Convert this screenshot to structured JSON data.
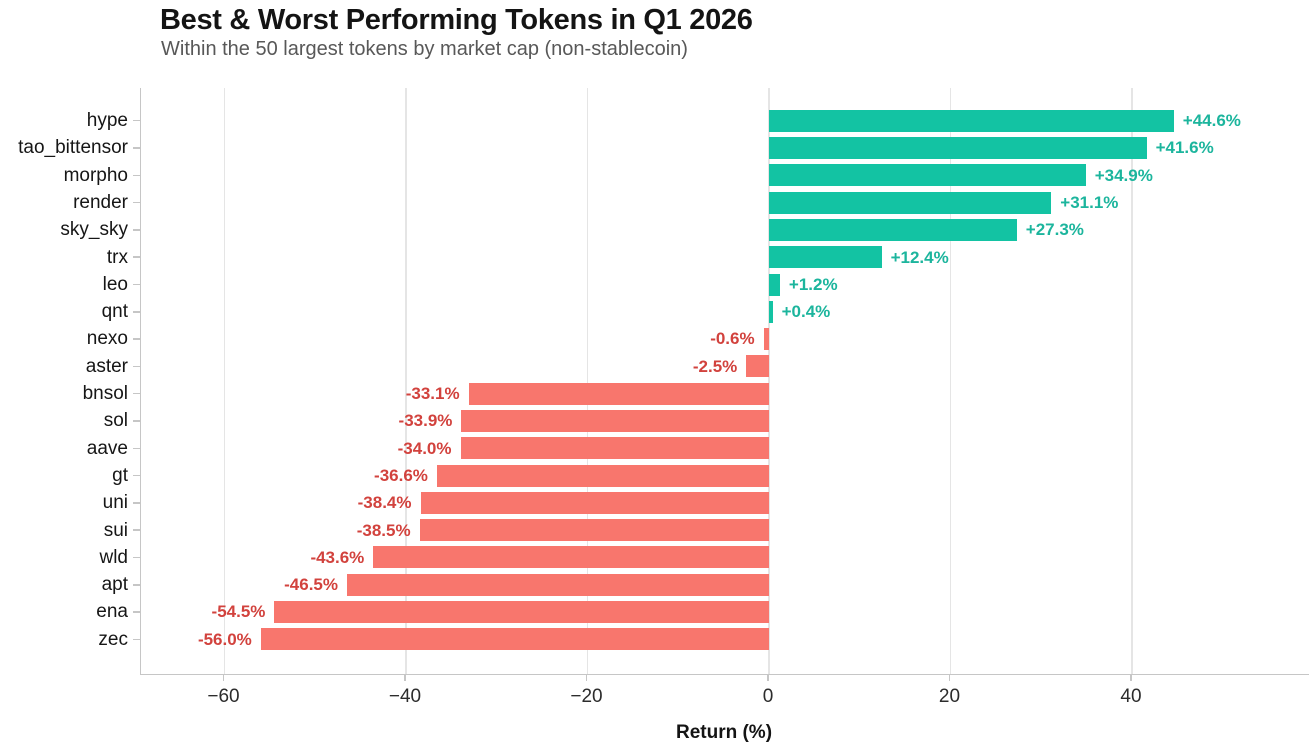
{
  "header": {
    "title": "Best & Worst Performing Tokens in Q1 2026",
    "subtitle": "Within the 50 largest tokens by market cap (non-stablecoin)"
  },
  "colors": {
    "positive_bar": "#13c3a3",
    "negative_bar": "#f8766d",
    "positive_label": "#1cb59d",
    "negative_label": "#d2423d",
    "gridline": "#e5e5e5",
    "axis_spine": "#c6c6c6",
    "title_text": "#141414",
    "subtitle_text": "#585858"
  },
  "chart_data": {
    "type": "bar",
    "orientation": "horizontal",
    "title": "Best & Worst Performing Tokens in Q1 2026",
    "subtitle": "Within the 50 largest tokens by market cap (non-stablecoin)",
    "xlabel": "Return (%)",
    "ylabel": "",
    "categories": [
      "hype",
      "tao_bittensor",
      "morpho",
      "render",
      "sky_sky",
      "trx",
      "leo",
      "qnt",
      "nexo",
      "aster",
      "bnsol",
      "sol",
      "aave",
      "gt",
      "uni",
      "sui",
      "wld",
      "apt",
      "ena",
      "zec"
    ],
    "values": [
      44.6,
      41.6,
      34.9,
      31.1,
      27.3,
      12.4,
      1.2,
      0.4,
      -0.6,
      -2.5,
      -33.1,
      -33.9,
      -34.0,
      -36.6,
      -38.4,
      -38.5,
      -43.6,
      -46.5,
      -54.5,
      -56.0
    ],
    "value_labels": [
      "+44.6%",
      "+41.6%",
      "+34.9%",
      "+31.1%",
      "+27.3%",
      "+12.4%",
      "+1.2%",
      "+0.4%",
      "-0.6%",
      "-2.5%",
      "-33.1%",
      "-33.9%",
      "-34.0%",
      "-36.6%",
      "-38.4%",
      "-38.5%",
      "-43.6%",
      "-46.5%",
      "-54.5%",
      "-56.0%"
    ],
    "xticks": [
      -60,
      -40,
      -20,
      0,
      20,
      40
    ],
    "xtick_labels": [
      "−60",
      "−40",
      "−20",
      "0",
      "20",
      "40"
    ],
    "xlim": [
      -69.2,
      59.5
    ],
    "grid": true,
    "legend": false
  }
}
